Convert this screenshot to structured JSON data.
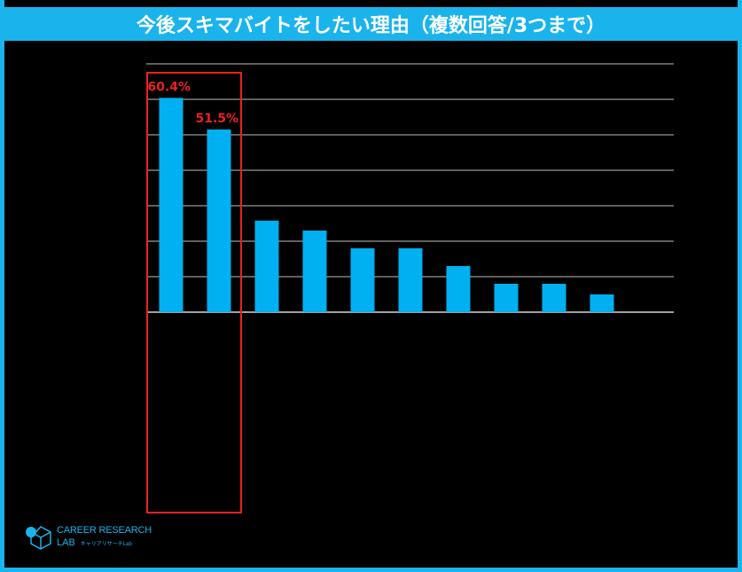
{
  "header": {
    "title": "今後スキマバイトをしたい理由（複数回答/3つまで）"
  },
  "chart_data": {
    "type": "bar",
    "title": "今後スキマバイトをしたい理由（複数回答/3つまで）",
    "categories": [
      "",
      "",
      "",
      "",
      "",
      "",
      "",
      "",
      "",
      ""
    ],
    "values": [
      60.4,
      51.5,
      25.8,
      23.0,
      18.0,
      18.0,
      13.0,
      8.0,
      8.0,
      5.0
    ],
    "value_labels": [
      "60.4%",
      "51.5%",
      "",
      "",
      "",
      "",
      "",
      "",
      "",
      ""
    ],
    "ylim": [
      0,
      70
    ],
    "grid": true,
    "highlighted_indices": [
      0,
      1
    ],
    "colors": {
      "bar": "#00b0f0",
      "highlight": "#e8231f",
      "grid": "#ffffff"
    }
  },
  "logo": {
    "line1": "CAREER RESEARCH",
    "line2": "LAB",
    "sub": "キャリアリサーチLab"
  }
}
